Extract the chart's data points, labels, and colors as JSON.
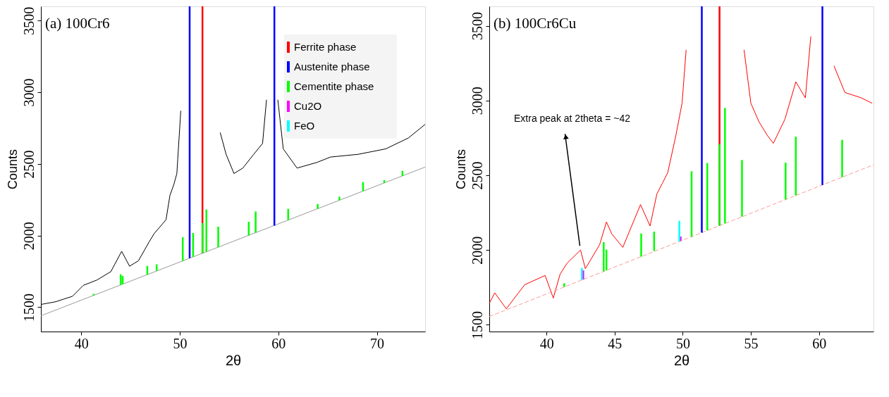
{
  "chart_data": [
    {
      "type": "line",
      "title": "(a) 100Cr6",
      "xlabel": "2θ",
      "ylabel": "Counts",
      "xlim": [
        35.9,
        74.9
      ],
      "ylim": [
        1330,
        3600
      ],
      "xticks": [
        40,
        50,
        60,
        70
      ],
      "yticks": [
        1500,
        2000,
        2500,
        3000,
        3500
      ],
      "grid": false,
      "legend": "top right",
      "series": [
        {
          "color": "#000000",
          "x": [
            35.9,
            37.4,
            39.1,
            40.2,
            41.6,
            43.0,
            44.1,
            44.9,
            45.8,
            46.9,
            47.4,
            48.6,
            49.0,
            49.4,
            49.7,
            50.1,
            50.45,
            52.0,
            53.5,
            54.1,
            54.7,
            55.5,
            56.4,
            57.5,
            58.4,
            58.8,
            59.1,
            59.45,
            59.8,
            59.95,
            60.5,
            61.9,
            63.9,
            65.3,
            68.1,
            70.9,
            73.2,
            74.9
          ],
          "values": [
            1519,
            1538,
            1576,
            1652,
            1690,
            1748,
            1890,
            1786,
            1824,
            1957,
            2014,
            2110,
            2281,
            2357,
            2433,
            2871,
            null,
            null,
            null,
            2719,
            2567,
            2433,
            2471,
            2567,
            2643,
            2948,
            null,
            null,
            null,
            2948,
            2605,
            2471,
            2510,
            2548,
            2567,
            2605,
            2681,
            2776
          ]
        },
        {
          "color": "#999999",
          "x": [
            35.9,
            74.9
          ],
          "values": [
            1440,
            2478
          ]
        },
        {
          "type": "bar",
          "name": "Ferrite phase",
          "color": "#ff0000",
          "x": [
            52.3
          ],
          "base": [
            1876
          ],
          "values": [
            1724
          ]
        },
        {
          "type": "bar",
          "name": "Austenite phase",
          "color": "#0000ff",
          "x": [
            51.0,
            59.6
          ],
          "base": [
            1842,
            2070
          ],
          "values": [
            1758,
            1530
          ]
        },
        {
          "type": "bar",
          "name": "Cementite phase",
          "color": "#00ff00",
          "x": [
            41.25,
            44.0,
            44.2,
            46.7,
            47.65,
            50.3,
            51.35,
            52.3,
            52.7,
            53.9,
            57.0,
            57.7,
            61.0,
            64.0,
            66.2,
            68.6,
            70.75,
            72.6
          ],
          "base": [
            1582,
            1655,
            1661,
            1727,
            1753,
            1823,
            1851,
            1876,
            1887,
            1919,
            2001,
            2020,
            2108,
            2187,
            2246,
            2310,
            2367,
            2416
          ],
          "values": [
            11,
            74,
            57,
            61,
            46,
            166,
            167,
            211,
            295,
            143,
            95,
            148,
            78,
            33,
            25,
            63,
            20,
            35
          ]
        },
        {
          "type": "bar",
          "name": "Cu2O",
          "color": "#ff00ff"
        },
        {
          "type": "bar",
          "name": "FeO",
          "color": "#00ffff"
        }
      ]
    },
    {
      "type": "line",
      "title": "(b) 100Cr6Cu",
      "xlabel": "2θ",
      "ylabel": "Counts",
      "xlim": [
        35.8,
        64.0
      ],
      "ylim": [
        1455,
        3630
      ],
      "xticks": [
        40,
        45,
        50,
        55,
        60
      ],
      "yticks": [
        1500,
        2000,
        2500,
        3000,
        3500
      ],
      "grid": false,
      "legend": false,
      "annotations": [
        {
          "text": "Extra peak at 2theta = ~42",
          "x": 42.5,
          "y": 2000
        }
      ],
      "series": [
        {
          "color": "#ff0000",
          "x": [
            35.8,
            36.2,
            37.05,
            38.4,
            39.9,
            40.5,
            41.0,
            41.5,
            42.5,
            42.85,
            43.9,
            44.4,
            44.8,
            45.6,
            46.9,
            47.6,
            48.1,
            48.5,
            48.9,
            49.5,
            49.95,
            50.25,
            50.5,
            52.4,
            54.3,
            54.5,
            55.0,
            55.6,
            56.2,
            56.65,
            57.5,
            58.3,
            59.0,
            59.4,
            59.6,
            60.2,
            60.8,
            61.1,
            61.9,
            63.1,
            63.9
          ],
          "values": [
            1643,
            1714,
            1607,
            1768,
            1830,
            1679,
            1839,
            1911,
            2000,
            1875,
            2036,
            2188,
            2107,
            2018,
            2304,
            2161,
            2375,
            2446,
            2518,
            2768,
            2982,
            3339,
            null,
            null,
            null,
            3339,
            2982,
            2857,
            2768,
            2714,
            2875,
            3125,
            3018,
            3429,
            null,
            null,
            null,
            3232,
            3054,
            3018,
            2982
          ]
        },
        {
          "color": "#ff9999",
          "line_style": "dashed",
          "x": [
            35.8,
            64.0
          ],
          "values": [
            1555,
            2570
          ]
        },
        {
          "type": "bar",
          "color": "#ff0000",
          "x": [
            52.7
          ],
          "base": [
            2163
          ],
          "values": [
            1467
          ]
        },
        {
          "type": "bar",
          "color": "#0000ff",
          "x": [
            51.4,
            60.25
          ],
          "base": [
            2116,
            2435
          ],
          "values": [
            1514,
            1195
          ]
        },
        {
          "type": "bar",
          "color": "#00ff00",
          "x": [
            41.3,
            44.2,
            44.4,
            46.95,
            47.9,
            50.65,
            51.8,
            52.7,
            53.1,
            54.35,
            57.55,
            58.3,
            61.7
          ],
          "base": [
            1753,
            1857,
            1864,
            1956,
            1994,
            2089,
            2131,
            2163,
            2178,
            2223,
            2338,
            2365,
            2487
          ],
          "values": [
            25,
            196,
            139,
            155,
            129,
            438,
            451,
            545,
            772,
            379,
            246,
            393,
            250
          ]
        },
        {
          "type": "bar",
          "color": "#ff00ff",
          "x": [
            42.7,
            49.85
          ],
          "base": [
            1803,
            2061
          ],
          "values": [
            61,
            29
          ]
        },
        {
          "type": "bar",
          "color": "#00ffff",
          "x": [
            42.6,
            49.75
          ],
          "base": [
            1800,
            2057
          ],
          "values": [
            80,
            138
          ]
        }
      ]
    }
  ]
}
